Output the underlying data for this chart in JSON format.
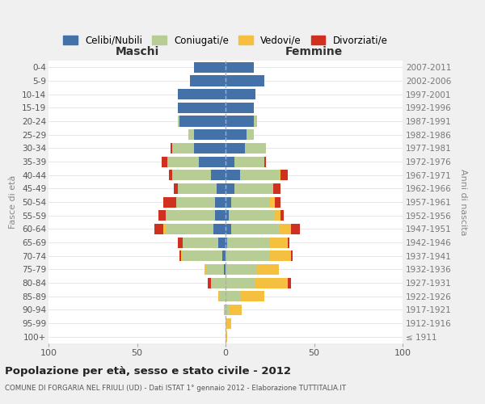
{
  "age_groups": [
    "100+",
    "95-99",
    "90-94",
    "85-89",
    "80-84",
    "75-79",
    "70-74",
    "65-69",
    "60-64",
    "55-59",
    "50-54",
    "45-49",
    "40-44",
    "35-39",
    "30-34",
    "25-29",
    "20-24",
    "15-19",
    "10-14",
    "5-9",
    "0-4"
  ],
  "birth_years": [
    "≤ 1911",
    "1912-1916",
    "1917-1921",
    "1922-1926",
    "1927-1931",
    "1932-1936",
    "1937-1941",
    "1942-1946",
    "1947-1951",
    "1952-1956",
    "1957-1961",
    "1962-1966",
    "1967-1971",
    "1972-1976",
    "1977-1981",
    "1982-1986",
    "1987-1991",
    "1992-1996",
    "1997-2001",
    "2002-2006",
    "2007-2011"
  ],
  "maschi": {
    "celibi": [
      0,
      0,
      0,
      0,
      0,
      1,
      2,
      4,
      7,
      6,
      6,
      5,
      8,
      15,
      18,
      18,
      26,
      27,
      27,
      20,
      18
    ],
    "coniugati": [
      0,
      0,
      1,
      3,
      8,
      10,
      22,
      20,
      27,
      28,
      22,
      22,
      22,
      18,
      12,
      3,
      1,
      0,
      0,
      0,
      0
    ],
    "vedovi": [
      0,
      0,
      0,
      1,
      0,
      1,
      1,
      0,
      1,
      0,
      0,
      0,
      0,
      0,
      0,
      0,
      0,
      0,
      0,
      0,
      0
    ],
    "divorziati": [
      0,
      0,
      0,
      0,
      2,
      0,
      1,
      3,
      5,
      4,
      7,
      2,
      2,
      3,
      1,
      0,
      0,
      0,
      0,
      0,
      0
    ]
  },
  "femmine": {
    "nubili": [
      0,
      0,
      0,
      0,
      0,
      0,
      0,
      1,
      3,
      2,
      3,
      5,
      8,
      5,
      11,
      12,
      16,
      16,
      17,
      22,
      16
    ],
    "coniugate": [
      0,
      0,
      2,
      8,
      17,
      18,
      25,
      24,
      27,
      26,
      22,
      22,
      22,
      17,
      12,
      4,
      2,
      0,
      0,
      0,
      0
    ],
    "vedove": [
      1,
      3,
      7,
      14,
      18,
      12,
      12,
      10,
      7,
      3,
      3,
      0,
      1,
      0,
      0,
      0,
      0,
      0,
      0,
      0,
      0
    ],
    "divorziate": [
      0,
      0,
      0,
      0,
      2,
      0,
      1,
      1,
      5,
      2,
      3,
      4,
      4,
      1,
      0,
      0,
      0,
      0,
      0,
      0,
      0
    ]
  },
  "colors": {
    "celibi_nubili": "#4472a8",
    "coniugati": "#b8cc96",
    "vedovi": "#f5c040",
    "divorziati": "#d03020"
  },
  "xlim": 100,
  "title": "Popolazione per età, sesso e stato civile - 2012",
  "subtitle": "COMUNE DI FORGARIA NEL FRIULI (UD) - Dati ISTAT 1° gennaio 2012 - Elaborazione TUTTITALIA.IT",
  "ylabel": "Fasce di età",
  "ylabel_right": "Anni di nascita",
  "xlabel_maschi": "Maschi",
  "xlabel_femmine": "Femmine",
  "bg_color": "#f0f0f0",
  "plot_bg_color": "#ffffff",
  "legend_labels": [
    "Celibi/Nubili",
    "Coniugati/e",
    "Vedovi/e",
    "Divorziati/e"
  ]
}
